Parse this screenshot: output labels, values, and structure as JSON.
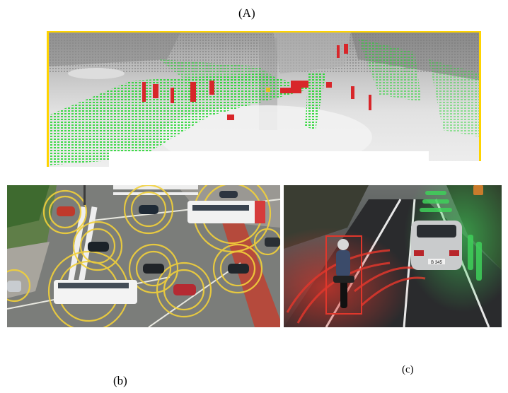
{
  "captions": {
    "a": "(A)",
    "b": "(b)",
    "c": "(c)"
  },
  "panel_c": {
    "plate_text": "B 345"
  },
  "colors": {
    "lidar_green": "#22d62e",
    "lidar_red": "#d8262a",
    "frame_yellow": "#ffd400",
    "signal_yellow": "#f2d13a",
    "sensor_red": "#e0372c",
    "sensor_green": "#3fd05a"
  }
}
